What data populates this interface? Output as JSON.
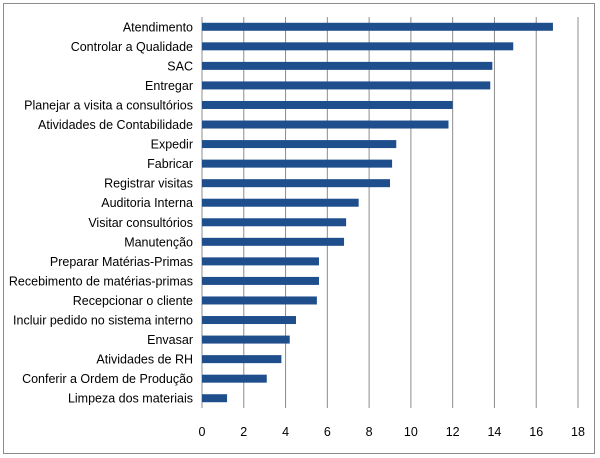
{
  "chart_data": {
    "type": "bar",
    "orientation": "horizontal",
    "categories": [
      "Atendimento",
      "Controlar a Qualidade",
      "SAC",
      "Entregar",
      "Planejar a visita a consultórios",
      "Atividades de Contabilidade",
      "Expedir",
      "Fabricar",
      "Registrar visitas",
      "Auditoria Interna",
      "Visitar consultórios",
      "Manutenção",
      "Preparar Matérias-Primas",
      "Recebimento de matérias-primas",
      "Recepcionar o cliente",
      "Incluir pedido no sistema interno",
      "Envasar",
      "Atividades de RH",
      "Conferir a Ordem de Produção",
      "Limpeza dos materiais"
    ],
    "values": [
      16.8,
      14.9,
      13.9,
      13.8,
      12.0,
      11.8,
      9.3,
      9.1,
      9.0,
      7.5,
      6.9,
      6.8,
      5.6,
      5.6,
      5.5,
      4.5,
      4.2,
      3.8,
      3.1,
      1.2
    ],
    "title": "",
    "xlabel": "",
    "ylabel": "",
    "xlim": [
      0,
      18
    ],
    "x_ticks": [
      "0",
      "2",
      "4",
      "6",
      "8",
      "10",
      "12",
      "14",
      "16",
      "18"
    ],
    "grid": "vertical",
    "legend": "none",
    "bar_color": "#1f4e8c",
    "gridline_color": "#8c8c8c"
  }
}
